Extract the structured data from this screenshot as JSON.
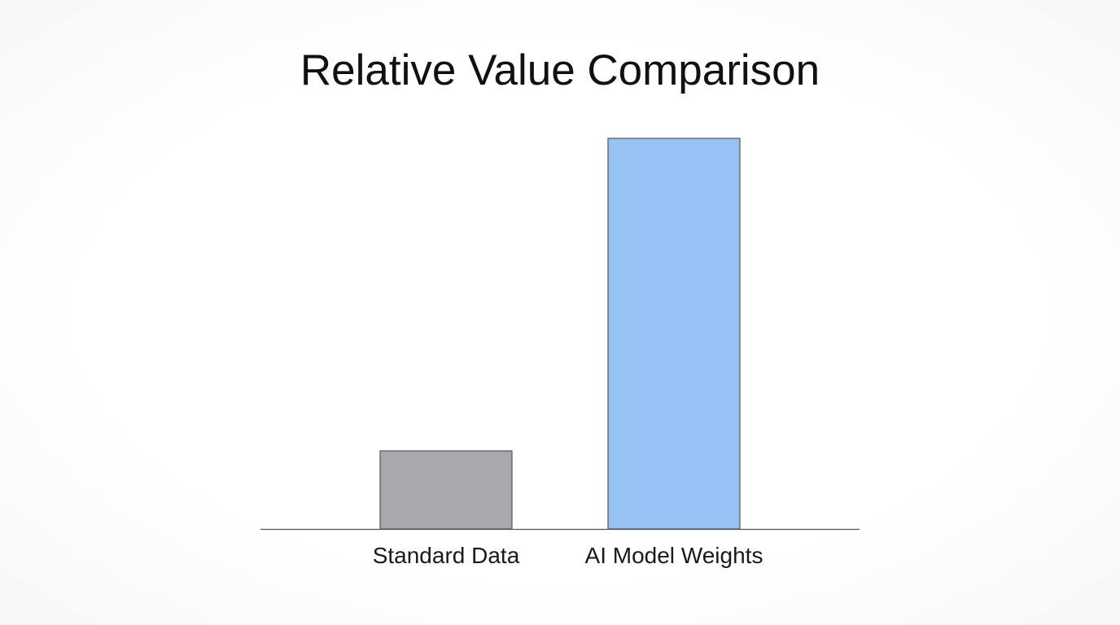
{
  "chart_data": {
    "type": "bar",
    "title": "Relative Value Comparison",
    "categories": [
      "Standard Data",
      "AI Model Weights"
    ],
    "values": [
      20,
      100
    ],
    "ylim": [
      0,
      100
    ],
    "xlabel": "",
    "ylabel": "",
    "grid": false,
    "legend": "none",
    "colors": [
      "#a6a8ad",
      "#95c2f2"
    ],
    "bar_edge_color": "#555555",
    "axis_color": "#555555"
  }
}
